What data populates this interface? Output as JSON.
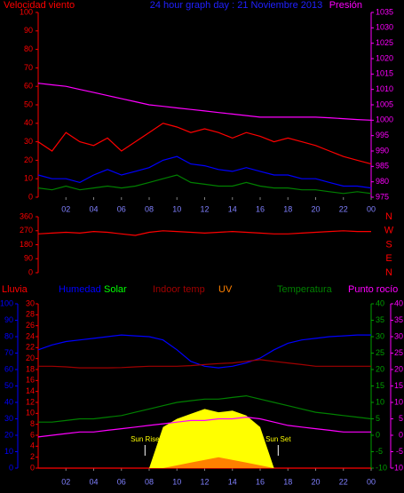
{
  "chart_data": [
    {
      "type": "line",
      "title": "24 hour graph day : 21 Noviembre 2013",
      "y_label": "Velocidad viento",
      "y2_label": "Presión",
      "x": [
        0,
        1,
        2,
        3,
        4,
        5,
        6,
        7,
        8,
        9,
        10,
        11,
        12,
        13,
        14,
        15,
        16,
        17,
        18,
        19,
        20,
        21,
        22,
        23,
        24
      ],
      "xlim": [
        0,
        24
      ],
      "xticks": [
        {
          "value": 2,
          "label": "02"
        },
        {
          "value": 4,
          "label": "04"
        },
        {
          "value": 6,
          "label": "06"
        },
        {
          "value": 8,
          "label": "08"
        },
        10,
        12,
        14,
        16,
        18,
        20,
        22,
        {
          "value": 24,
          "label": "00"
        }
      ],
      "ylim": [
        0,
        100
      ],
      "yticks": [
        0,
        10,
        20,
        30,
        40,
        50,
        60,
        70,
        80,
        90,
        100
      ],
      "ycolors": [
        "#ff0000"
      ],
      "y2lim": [
        975,
        1035
      ],
      "y2ticks": [
        975,
        980,
        985,
        990,
        995,
        1000,
        1005,
        1010,
        1015,
        1020,
        1025,
        1030,
        1035
      ],
      "y2colors": [
        "#ff00ff"
      ],
      "series": [
        {
          "color": "#ff0000",
          "values": [
            30,
            25,
            35,
            30,
            28,
            32,
            25,
            30,
            35,
            40,
            38,
            35,
            37,
            35,
            32,
            35,
            33,
            30,
            32,
            30,
            28,
            25,
            22,
            20,
            18
          ]
        },
        {
          "color": "#0000ff",
          "values": [
            12,
            10,
            10,
            8,
            12,
            15,
            12,
            14,
            16,
            20,
            22,
            18,
            17,
            15,
            14,
            16,
            14,
            12,
            12,
            10,
            10,
            8,
            6,
            6,
            5
          ]
        },
        {
          "color": "#008000",
          "values": [
            5,
            4,
            6,
            4,
            5,
            6,
            5,
            6,
            8,
            10,
            12,
            8,
            7,
            6,
            6,
            8,
            6,
            5,
            5,
            4,
            4,
            3,
            2,
            3,
            2
          ]
        },
        {
          "color": "#ff00ff",
          "axis": "y2",
          "values": [
            1012,
            1011.5,
            1011,
            1010,
            1009,
            1008,
            1007,
            1006,
            1005,
            1004.5,
            1004,
            1003.5,
            1003,
            1002.5,
            1002,
            1001.5,
            1001,
            1001,
            1001,
            1001,
            1001,
            1000.8,
            1000.5,
            1000.2,
            1000
          ]
        }
      ]
    },
    {
      "type": "line",
      "x": [
        0,
        1,
        2,
        3,
        4,
        5,
        6,
        7,
        8,
        9,
        10,
        11,
        12,
        13,
        14,
        15,
        16,
        17,
        18,
        19,
        20,
        21,
        22,
        23,
        24
      ],
      "xlim": [
        0,
        24
      ],
      "ylim": [
        0,
        360
      ],
      "yticks": [
        0,
        90,
        180,
        270,
        360
      ],
      "ycolors": [
        "#ff0000"
      ],
      "direction_labels": [
        "N",
        "E",
        "S",
        "W",
        "N"
      ],
      "series": [
        {
          "color": "#ff0000",
          "values": [
            250,
            255,
            260,
            255,
            265,
            260,
            250,
            240,
            260,
            270,
            265,
            260,
            255,
            260,
            265,
            260,
            255,
            250,
            250,
            255,
            260,
            265,
            270,
            265,
            265
          ]
        }
      ]
    },
    {
      "type": "line",
      "x": [
        0,
        1,
        2,
        3,
        4,
        5,
        6,
        7,
        8,
        9,
        10,
        11,
        12,
        13,
        14,
        15,
        16,
        17,
        18,
        19,
        20,
        21,
        22,
        23,
        24
      ],
      "xlim": [
        0,
        24
      ],
      "xticks": [
        {
          "value": 2,
          "label": "02"
        },
        {
          "value": 4,
          "label": "04"
        },
        {
          "value": 6,
          "label": "06"
        },
        {
          "value": 8,
          "label": "08"
        },
        10,
        12,
        14,
        16,
        18,
        20,
        22,
        {
          "value": 24,
          "label": "00"
        }
      ],
      "ylim": [
        0,
        100
      ],
      "yticks": [
        0,
        10,
        20,
        30,
        40,
        50,
        60,
        70,
        80,
        90,
        100
      ],
      "ycolors": [
        "#0000ff"
      ],
      "y3lim": [
        0,
        30
      ],
      "y3ticks": [
        0,
        2,
        4,
        6,
        8,
        10,
        12,
        14,
        16,
        18,
        20,
        22,
        24,
        26,
        28,
        30
      ],
      "y3colors": [
        "#ff0000"
      ],
      "y2lim": [
        -10,
        40
      ],
      "y2ticks": [
        -10,
        -5,
        0,
        5,
        10,
        15,
        20,
        25,
        30,
        35,
        40
      ],
      "y2colors": [
        "#00a000",
        "#ff00ff"
      ],
      "annotations": [
        {
          "text": "Sun Rise",
          "x": 7.7
        },
        {
          "text": "Sun Set",
          "x": 17.3
        }
      ],
      "series": [
        {
          "name": "Lluvia",
          "color": "#ff0000",
          "axis": "y3",
          "values": [
            0,
            0,
            0,
            0,
            0,
            0,
            0,
            0,
            0,
            0,
            0,
            0,
            0,
            0,
            0,
            0,
            0,
            0,
            0,
            0,
            0,
            0,
            0,
            0,
            0
          ]
        },
        {
          "name": "Humedad",
          "color": "#0000ff",
          "values": [
            72,
            75,
            77,
            78,
            79,
            80,
            81,
            80.5,
            80,
            78,
            72,
            65,
            62,
            61,
            62,
            64,
            67,
            72,
            76,
            78,
            79,
            80,
            80.5,
            81,
            81
          ]
        },
        {
          "name": "Solar",
          "color": "#ffff00",
          "label_color": "#00ff00",
          "fill": true,
          "values": [
            0,
            0,
            0,
            0,
            0,
            0,
            0,
            0,
            0,
            25,
            30,
            33,
            36,
            34,
            35,
            32,
            25,
            0,
            0,
            0,
            0,
            0,
            0,
            0,
            0
          ]
        },
        {
          "name": "Indoor temp",
          "color": "#a00000",
          "axis": "y2",
          "values": [
            21,
            21,
            20.8,
            20.5,
            20.5,
            20.5,
            20.6,
            20.8,
            21,
            21,
            21,
            21.2,
            21.5,
            21.8,
            22,
            22.5,
            23,
            22.5,
            22,
            21.5,
            21,
            21,
            21,
            21,
            21
          ]
        },
        {
          "name": "UV",
          "color": "#ff8000",
          "axis": "y3",
          "fill": true,
          "values": [
            0,
            0,
            0,
            0,
            0,
            0,
            0,
            0,
            0,
            0,
            0.5,
            1,
            1.5,
            2,
            1.5,
            1,
            0.5,
            0,
            0,
            0,
            0,
            0,
            0,
            0,
            0
          ]
        },
        {
          "name": "Temperatura",
          "color": "#008000",
          "axis": "y2",
          "values": [
            4,
            4,
            4.5,
            5,
            5,
            5.5,
            6,
            7,
            8,
            9,
            10,
            10.5,
            11,
            11,
            11.5,
            12,
            11,
            10,
            9,
            8,
            7,
            6.5,
            6,
            5.5,
            5
          ]
        },
        {
          "name": "Punto rocío",
          "color": "#ff00ff",
          "axis": "y2",
          "values": [
            -0.5,
            0,
            0.5,
            1,
            1,
            1.5,
            2,
            2.5,
            3,
            3.5,
            4,
            4.5,
            4.5,
            5,
            5,
            5.5,
            5,
            4,
            3,
            2.5,
            2,
            1.5,
            1,
            1,
            1
          ]
        }
      ]
    }
  ]
}
